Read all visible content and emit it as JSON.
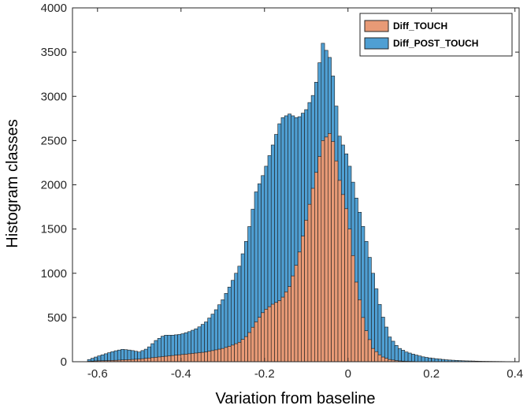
{
  "chart_data": {
    "type": "bar",
    "title": "",
    "xlabel": "Variation from baseline",
    "ylabel": "Histogram classes",
    "xlim": [
      -0.66,
      0.41
    ],
    "ylim": [
      0,
      4000
    ],
    "x_ticks": [
      -0.6,
      -0.4,
      -0.2,
      0,
      0.2,
      0.4
    ],
    "x_tick_labels": [
      "-0.6",
      "-0.4",
      "-0.2",
      "0",
      "0.2",
      "0.4"
    ],
    "y_ticks": [
      0,
      500,
      1000,
      1500,
      2000,
      2500,
      3000,
      3500,
      4000
    ],
    "y_tick_labels": [
      "0",
      "500",
      "1000",
      "1500",
      "2000",
      "2500",
      "3000",
      "3500",
      "4000"
    ],
    "grid": false,
    "legend_position": "top-right",
    "colors": {
      "Diff_TOUCH": "#e89a76",
      "Diff_POST_TOUCH": "#4f9fd3",
      "bar_edge": "#1a1a1a",
      "axis": "#262626"
    },
    "series": [
      {
        "name": "Diff_TOUCH",
        "points": [
          [
            -0.62,
            5
          ],
          [
            -0.6,
            10
          ],
          [
            -0.58,
            12
          ],
          [
            -0.56,
            15
          ],
          [
            -0.54,
            20
          ],
          [
            -0.52,
            25
          ],
          [
            -0.5,
            30
          ],
          [
            -0.48,
            40
          ],
          [
            -0.46,
            50
          ],
          [
            -0.44,
            60
          ],
          [
            -0.42,
            70
          ],
          [
            -0.4,
            80
          ],
          [
            -0.38,
            90
          ],
          [
            -0.36,
            100
          ],
          [
            -0.34,
            110
          ],
          [
            -0.32,
            130
          ],
          [
            -0.3,
            150
          ],
          [
            -0.28,
            180
          ],
          [
            -0.26,
            220
          ],
          [
            -0.24,
            300
          ],
          [
            -0.22,
            450
          ],
          [
            -0.2,
            580
          ],
          [
            -0.18,
            650
          ],
          [
            -0.16,
            700
          ],
          [
            -0.14,
            850
          ],
          [
            -0.12,
            1150
          ],
          [
            -0.1,
            1600
          ],
          [
            -0.08,
            2050
          ],
          [
            -0.06,
            2500
          ],
          [
            -0.04,
            2600
          ],
          [
            -0.02,
            2050
          ],
          [
            0.0,
            1650
          ],
          [
            0.02,
            900
          ],
          [
            0.04,
            400
          ],
          [
            0.06,
            150
          ],
          [
            0.08,
            60
          ],
          [
            0.1,
            25
          ],
          [
            0.12,
            10
          ],
          [
            0.14,
            5
          ],
          [
            0.16,
            3
          ]
        ]
      },
      {
        "name": "Diff_POST_TOUCH",
        "points": [
          [
            -0.62,
            25
          ],
          [
            -0.6,
            60
          ],
          [
            -0.58,
            90
          ],
          [
            -0.56,
            120
          ],
          [
            -0.54,
            140
          ],
          [
            -0.52,
            130
          ],
          [
            -0.5,
            110
          ],
          [
            -0.48,
            150
          ],
          [
            -0.46,
            240
          ],
          [
            -0.44,
            300
          ],
          [
            -0.42,
            300
          ],
          [
            -0.4,
            310
          ],
          [
            -0.38,
            340
          ],
          [
            -0.36,
            380
          ],
          [
            -0.34,
            450
          ],
          [
            -0.32,
            560
          ],
          [
            -0.3,
            700
          ],
          [
            -0.28,
            880
          ],
          [
            -0.26,
            1080
          ],
          [
            -0.24,
            1430
          ],
          [
            -0.22,
            1920
          ],
          [
            -0.2,
            2150
          ],
          [
            -0.18,
            2450
          ],
          [
            -0.16,
            2750
          ],
          [
            -0.14,
            2800
          ],
          [
            -0.12,
            2750
          ],
          [
            -0.1,
            2850
          ],
          [
            -0.08,
            3050
          ],
          [
            -0.06,
            3600
          ],
          [
            -0.04,
            3400
          ],
          [
            -0.02,
            2550
          ],
          [
            0.0,
            2300
          ],
          [
            0.02,
            1850
          ],
          [
            0.04,
            1450
          ],
          [
            0.06,
            1000
          ],
          [
            0.08,
            560
          ],
          [
            0.1,
            280
          ],
          [
            0.12,
            160
          ],
          [
            0.14,
            110
          ],
          [
            0.16,
            80
          ],
          [
            0.18,
            55
          ],
          [
            0.2,
            40
          ],
          [
            0.22,
            30
          ],
          [
            0.24,
            20
          ],
          [
            0.26,
            15
          ],
          [
            0.28,
            10
          ],
          [
            0.3,
            8
          ],
          [
            0.32,
            5
          ],
          [
            0.34,
            4
          ],
          [
            0.36,
            3
          ],
          [
            0.38,
            2
          ]
        ]
      }
    ]
  }
}
